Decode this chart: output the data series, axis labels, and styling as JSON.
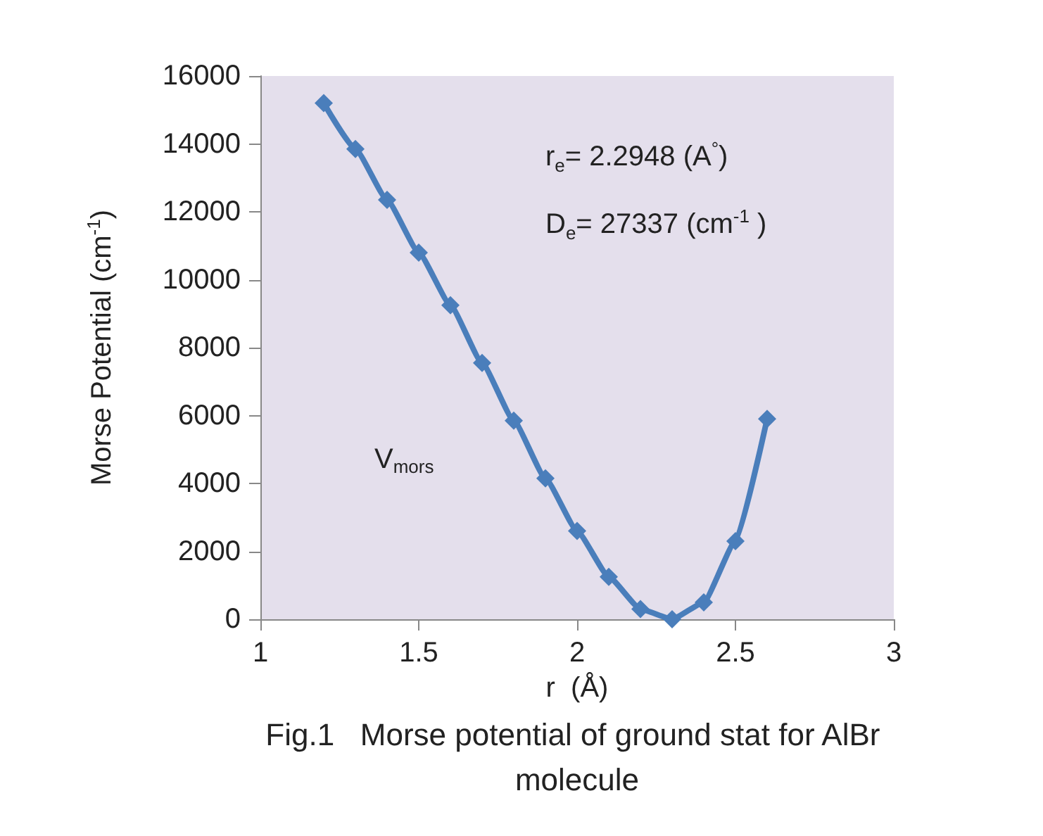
{
  "chart_data": {
    "type": "line",
    "title": "Fig.1   Morse potential of ground stat for AlBr molecule",
    "xlabel": "r  (Å)",
    "ylabel": "Morse Potential (cm$^{-1}$)",
    "x": [
      1.2,
      1.3,
      1.4,
      1.5,
      1.6,
      1.7,
      1.8,
      1.9,
      2.0,
      2.1,
      2.2,
      2.3,
      2.4,
      2.5,
      2.6
    ],
    "series": [
      {
        "color": "#4a7ebb",
        "values": [
          15200,
          13850,
          12350,
          10800,
          9250,
          7550,
          5850,
          4150,
          2600,
          1250,
          300,
          0,
          500,
          2300,
          5900
        ]
      }
    ],
    "xlim": [
      1,
      3
    ],
    "xticks": [
      1,
      1.5,
      2,
      2.5,
      3
    ],
    "ylim": [
      0,
      16000
    ],
    "yticks": [
      0,
      2000,
      4000,
      6000,
      8000,
      10000,
      12000,
      14000,
      16000
    ],
    "annotations": [
      "r$_{e}$= 2.2948 (A$^{°}$)",
      "D$_{e}$= 27337 (cm$^{-1}$ )",
      "V$_{mors}$"
    ],
    "grid": false,
    "marker": "diamond",
    "line_style": "solid"
  }
}
